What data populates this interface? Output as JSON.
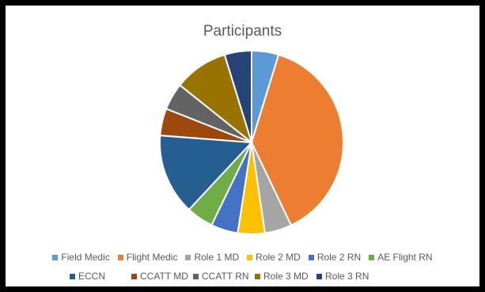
{
  "chart_data": {
    "type": "pie",
    "title": "Participants",
    "legend_position": "bottom",
    "units": "estimated percent of participants",
    "slices": [
      {
        "label": "Field Medic",
        "value": 4.8,
        "color": "#5B9BD5"
      },
      {
        "label": "Flight Medic",
        "value": 38.5,
        "color": "#ED7D31"
      },
      {
        "label": "Role 1 MD",
        "value": 4.8,
        "color": "#A5A5A5"
      },
      {
        "label": "Role 2 MD",
        "value": 4.8,
        "color": "#FFC000"
      },
      {
        "label": "Role 2 RN",
        "value": 4.8,
        "color": "#4472C4"
      },
      {
        "label": "AE Flight RN",
        "value": 4.8,
        "color": "#70AD47"
      },
      {
        "label": "ECCN",
        "value": 14.4,
        "color": "#255E91"
      },
      {
        "label": "CCATT MD",
        "value": 4.8,
        "color": "#9E480E"
      },
      {
        "label": "CCATT RN",
        "value": 4.8,
        "color": "#636363"
      },
      {
        "label": "Role 3 MD",
        "value": 9.6,
        "color": "#997300"
      },
      {
        "label": "Role 3 RN",
        "value": 4.8,
        "color": "#264478"
      }
    ]
  }
}
